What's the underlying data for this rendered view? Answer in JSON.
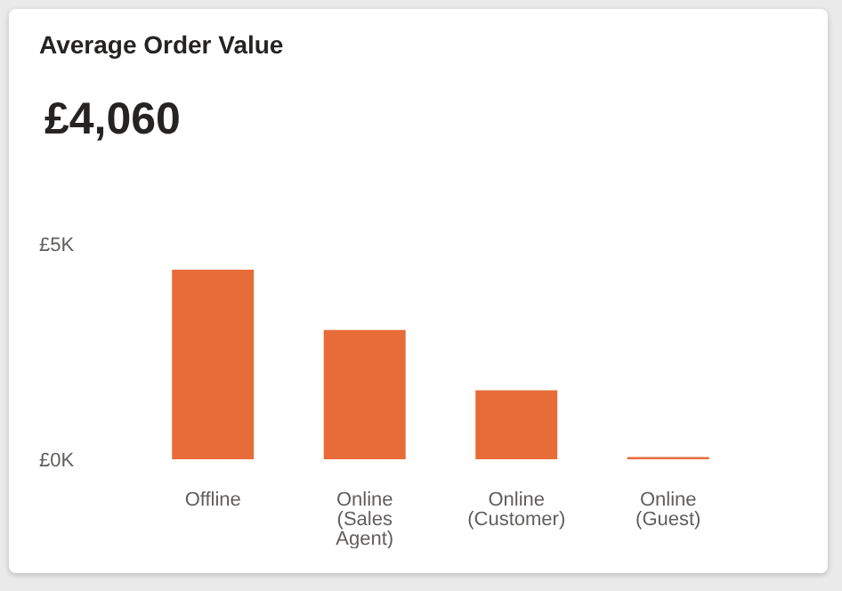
{
  "chart_data": {
    "type": "bar",
    "title": "Average Order Value",
    "annotations": [
      "£4,060"
    ],
    "categories": [
      "Offline",
      "Online (Sales Agent)",
      "Online (Customer)",
      "Online (Guest)"
    ],
    "values": [
      4400,
      3000,
      1600,
      50
    ],
    "color": "#e86c37",
    "ylim": [
      0,
      5000
    ],
    "yticks": [
      {
        "value": 0,
        "label": "£0K"
      },
      {
        "value": 5000,
        "label": "£5K"
      }
    ],
    "grid": false,
    "legend": false
  }
}
